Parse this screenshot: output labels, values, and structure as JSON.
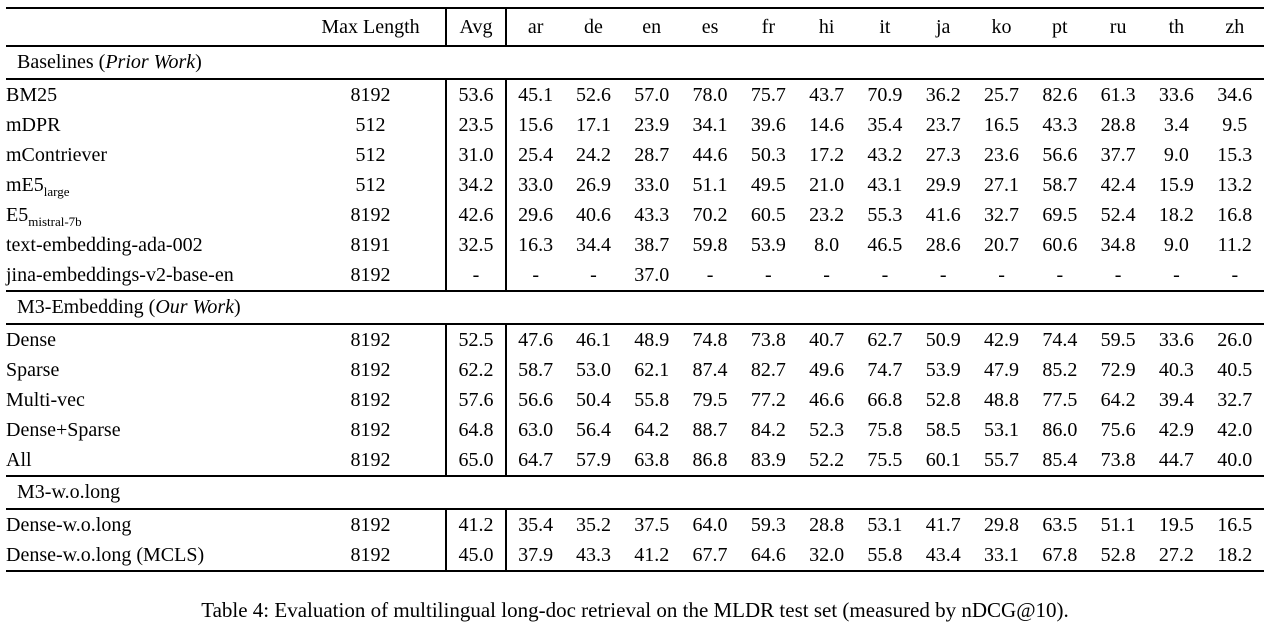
{
  "page": {
    "caption": "Table 4: Evaluation of multilingual long-doc retrieval on the MLDR test set (measured by nDCG@10)."
  },
  "table": {
    "header": {
      "corner": "",
      "max_length": "Max Length",
      "avg": "Avg",
      "languages": [
        "ar",
        "de",
        "en",
        "es",
        "fr",
        "hi",
        "it",
        "ja",
        "ko",
        "pt",
        "ru",
        "th",
        "zh"
      ]
    },
    "sections": [
      {
        "title": {
          "prefix": "Baselines (",
          "italic": "Prior Work",
          "suffix": ")"
        },
        "rows": [
          {
            "label": "BM25",
            "max_length": "8192",
            "avg": "53.6",
            "avg_bold": false,
            "values": [
              "45.1",
              "52.6",
              "57.0",
              "78.0",
              "75.7",
              "43.7",
              "70.9",
              "36.2",
              "25.7",
              "82.6",
              "61.3",
              "33.6",
              "34.6"
            ],
            "bold": [
              0,
              0,
              0,
              0,
              0,
              0,
              0,
              0,
              0,
              0,
              0,
              0,
              0
            ]
          },
          {
            "label": "mDPR",
            "max_length": "512",
            "avg": "23.5",
            "avg_bold": false,
            "values": [
              "15.6",
              "17.1",
              "23.9",
              "34.1",
              "39.6",
              "14.6",
              "35.4",
              "23.7",
              "16.5",
              "43.3",
              "28.8",
              "3.4",
              "9.5"
            ],
            "bold": [
              0,
              0,
              0,
              0,
              0,
              0,
              0,
              0,
              0,
              0,
              0,
              0,
              0
            ]
          },
          {
            "label": "mContriever",
            "max_length": "512",
            "avg": "31.0",
            "avg_bold": false,
            "values": [
              "25.4",
              "24.2",
              "28.7",
              "44.6",
              "50.3",
              "17.2",
              "43.2",
              "27.3",
              "23.6",
              "56.6",
              "37.7",
              "9.0",
              "15.3"
            ],
            "bold": [
              0,
              0,
              0,
              0,
              0,
              0,
              0,
              0,
              0,
              0,
              0,
              0,
              0
            ]
          },
          {
            "label": "mE5",
            "label_sub": "large",
            "max_length": "512",
            "avg": "34.2",
            "avg_bold": false,
            "values": [
              "33.0",
              "26.9",
              "33.0",
              "51.1",
              "49.5",
              "21.0",
              "43.1",
              "29.9",
              "27.1",
              "58.7",
              "42.4",
              "15.9",
              "13.2"
            ],
            "bold": [
              0,
              0,
              0,
              0,
              0,
              0,
              0,
              0,
              0,
              0,
              0,
              0,
              0
            ]
          },
          {
            "label": "E5",
            "label_sub": "mistral-7b",
            "max_length": "8192",
            "avg": "42.6",
            "avg_bold": false,
            "values": [
              "29.6",
              "40.6",
              "43.3",
              "70.2",
              "60.5",
              "23.2",
              "55.3",
              "41.6",
              "32.7",
              "69.5",
              "52.4",
              "18.2",
              "16.8"
            ],
            "bold": [
              0,
              0,
              0,
              0,
              0,
              0,
              0,
              0,
              0,
              0,
              0,
              0,
              0
            ]
          },
          {
            "label": "text-embedding-ada-002",
            "max_length": "8191",
            "avg": "32.5",
            "avg_bold": false,
            "values": [
              "16.3",
              "34.4",
              "38.7",
              "59.8",
              "53.9",
              "8.0",
              "46.5",
              "28.6",
              "20.7",
              "60.6",
              "34.8",
              "9.0",
              "11.2"
            ],
            "bold": [
              0,
              0,
              0,
              0,
              0,
              0,
              0,
              0,
              0,
              0,
              0,
              0,
              0
            ]
          },
          {
            "label": "jina-embeddings-v2-base-en",
            "max_length": "8192",
            "avg": "-",
            "avg_bold": false,
            "values": [
              "-",
              "-",
              "37.0",
              "-",
              "-",
              "-",
              "-",
              "-",
              "-",
              "-",
              "-",
              "-",
              "-"
            ],
            "bold": [
              0,
              0,
              0,
              0,
              0,
              0,
              0,
              0,
              0,
              0,
              0,
              0,
              0
            ]
          }
        ]
      },
      {
        "title": {
          "prefix": "M3-Embedding (",
          "italic": "Our Work",
          "suffix": ")"
        },
        "rows": [
          {
            "label": "Dense",
            "max_length": "8192",
            "avg": "52.5",
            "avg_bold": false,
            "values": [
              "47.6",
              "46.1",
              "48.9",
              "74.8",
              "73.8",
              "40.7",
              "62.7",
              "50.9",
              "42.9",
              "74.4",
              "59.5",
              "33.6",
              "26.0"
            ],
            "bold": [
              0,
              0,
              0,
              0,
              0,
              0,
              0,
              0,
              0,
              0,
              0,
              0,
              0
            ]
          },
          {
            "label": "Sparse",
            "max_length": "8192",
            "avg": "62.2",
            "avg_bold": false,
            "values": [
              "58.7",
              "53.0",
              "62.1",
              "87.4",
              "82.7",
              "49.6",
              "74.7",
              "53.9",
              "47.9",
              "85.2",
              "72.9",
              "40.3",
              "40.5"
            ],
            "bold": [
              0,
              0,
              0,
              0,
              0,
              0,
              0,
              0,
              0,
              0,
              0,
              0,
              0
            ]
          },
          {
            "label": "Multi-vec",
            "max_length": "8192",
            "avg": "57.6",
            "avg_bold": false,
            "values": [
              "56.6",
              "50.4",
              "55.8",
              "79.5",
              "77.2",
              "46.6",
              "66.8",
              "52.8",
              "48.8",
              "77.5",
              "64.2",
              "39.4",
              "32.7"
            ],
            "bold": [
              0,
              0,
              0,
              0,
              0,
              0,
              0,
              0,
              0,
              0,
              0,
              0,
              0
            ]
          },
          {
            "label": "Dense+Sparse",
            "max_length": "8192",
            "avg": "64.8",
            "avg_bold": false,
            "values": [
              "63.0",
              "56.4",
              "64.2",
              "88.7",
              "84.2",
              "52.3",
              "75.8",
              "58.5",
              "53.1",
              "86.0",
              "75.6",
              "42.9",
              "42.0"
            ],
            "bold": [
              0,
              0,
              1,
              1,
              1,
              1,
              1,
              0,
              0,
              1,
              1,
              0,
              1
            ]
          },
          {
            "label": "All",
            "max_length": "8192",
            "avg": "65.0",
            "avg_bold": true,
            "values": [
              "64.7",
              "57.9",
              "63.8",
              "86.8",
              "83.9",
              "52.2",
              "75.5",
              "60.1",
              "55.7",
              "85.4",
              "73.8",
              "44.7",
              "40.0"
            ],
            "bold": [
              1,
              1,
              0,
              0,
              0,
              0,
              0,
              1,
              1,
              0,
              0,
              1,
              0
            ]
          }
        ]
      },
      {
        "title": {
          "prefix": "M3-w.o.long",
          "italic": "",
          "suffix": ""
        },
        "rows": [
          {
            "label": "Dense-w.o.long",
            "max_length": "8192",
            "avg": "41.2",
            "avg_bold": false,
            "values": [
              "35.4",
              "35.2",
              "37.5",
              "64.0",
              "59.3",
              "28.8",
              "53.1",
              "41.7",
              "29.8",
              "63.5",
              "51.1",
              "19.5",
              "16.5"
            ],
            "bold": [
              0,
              0,
              0,
              0,
              0,
              0,
              0,
              0,
              0,
              0,
              0,
              0,
              0
            ]
          },
          {
            "label": "Dense-w.o.long (MCLS)",
            "max_length": "8192",
            "avg": "45.0",
            "avg_bold": false,
            "values": [
              "37.9",
              "43.3",
              "41.2",
              "67.7",
              "64.6",
              "32.0",
              "55.8",
              "43.4",
              "33.1",
              "67.8",
              "52.8",
              "27.2",
              "18.2"
            ],
            "bold": [
              0,
              0,
              0,
              0,
              0,
              0,
              0,
              0,
              0,
              0,
              0,
              0,
              0
            ]
          }
        ]
      }
    ]
  }
}
